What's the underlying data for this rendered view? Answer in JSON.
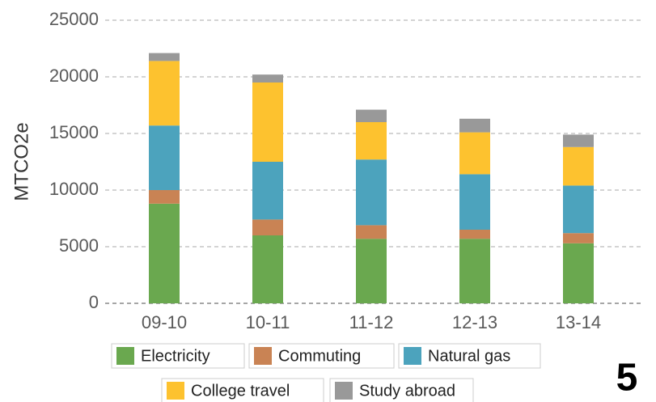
{
  "chart_data": {
    "type": "stacked_bar",
    "y_label": "MTCO2e",
    "categories": [
      "09-10",
      "10-11",
      "11-12",
      "12-13",
      "13-14"
    ],
    "series": [
      {
        "name": "Electricity",
        "color": "#6aa84f",
        "values": [
          8800,
          6000,
          5700,
          5700,
          5300
        ]
      },
      {
        "name": "Commuting",
        "color": "#c98354",
        "values": [
          1200,
          1400,
          1200,
          800,
          900
        ]
      },
      {
        "name": "Natural gas",
        "color": "#4ca3bd",
        "values": [
          5700,
          5100,
          5800,
          4900,
          4200
        ]
      },
      {
        "name": "College travel",
        "color": "#fdc22f",
        "values": [
          5700,
          7000,
          3300,
          3700,
          3400
        ]
      },
      {
        "name": "Study abroad",
        "color": "#999999",
        "values": [
          700,
          700,
          1100,
          1200,
          1100
        ]
      }
    ],
    "ylim": [
      0,
      25000
    ],
    "yticks": [
      0,
      5000,
      10000,
      15000,
      20000,
      25000
    ],
    "grid": true,
    "annotation": "5"
  }
}
